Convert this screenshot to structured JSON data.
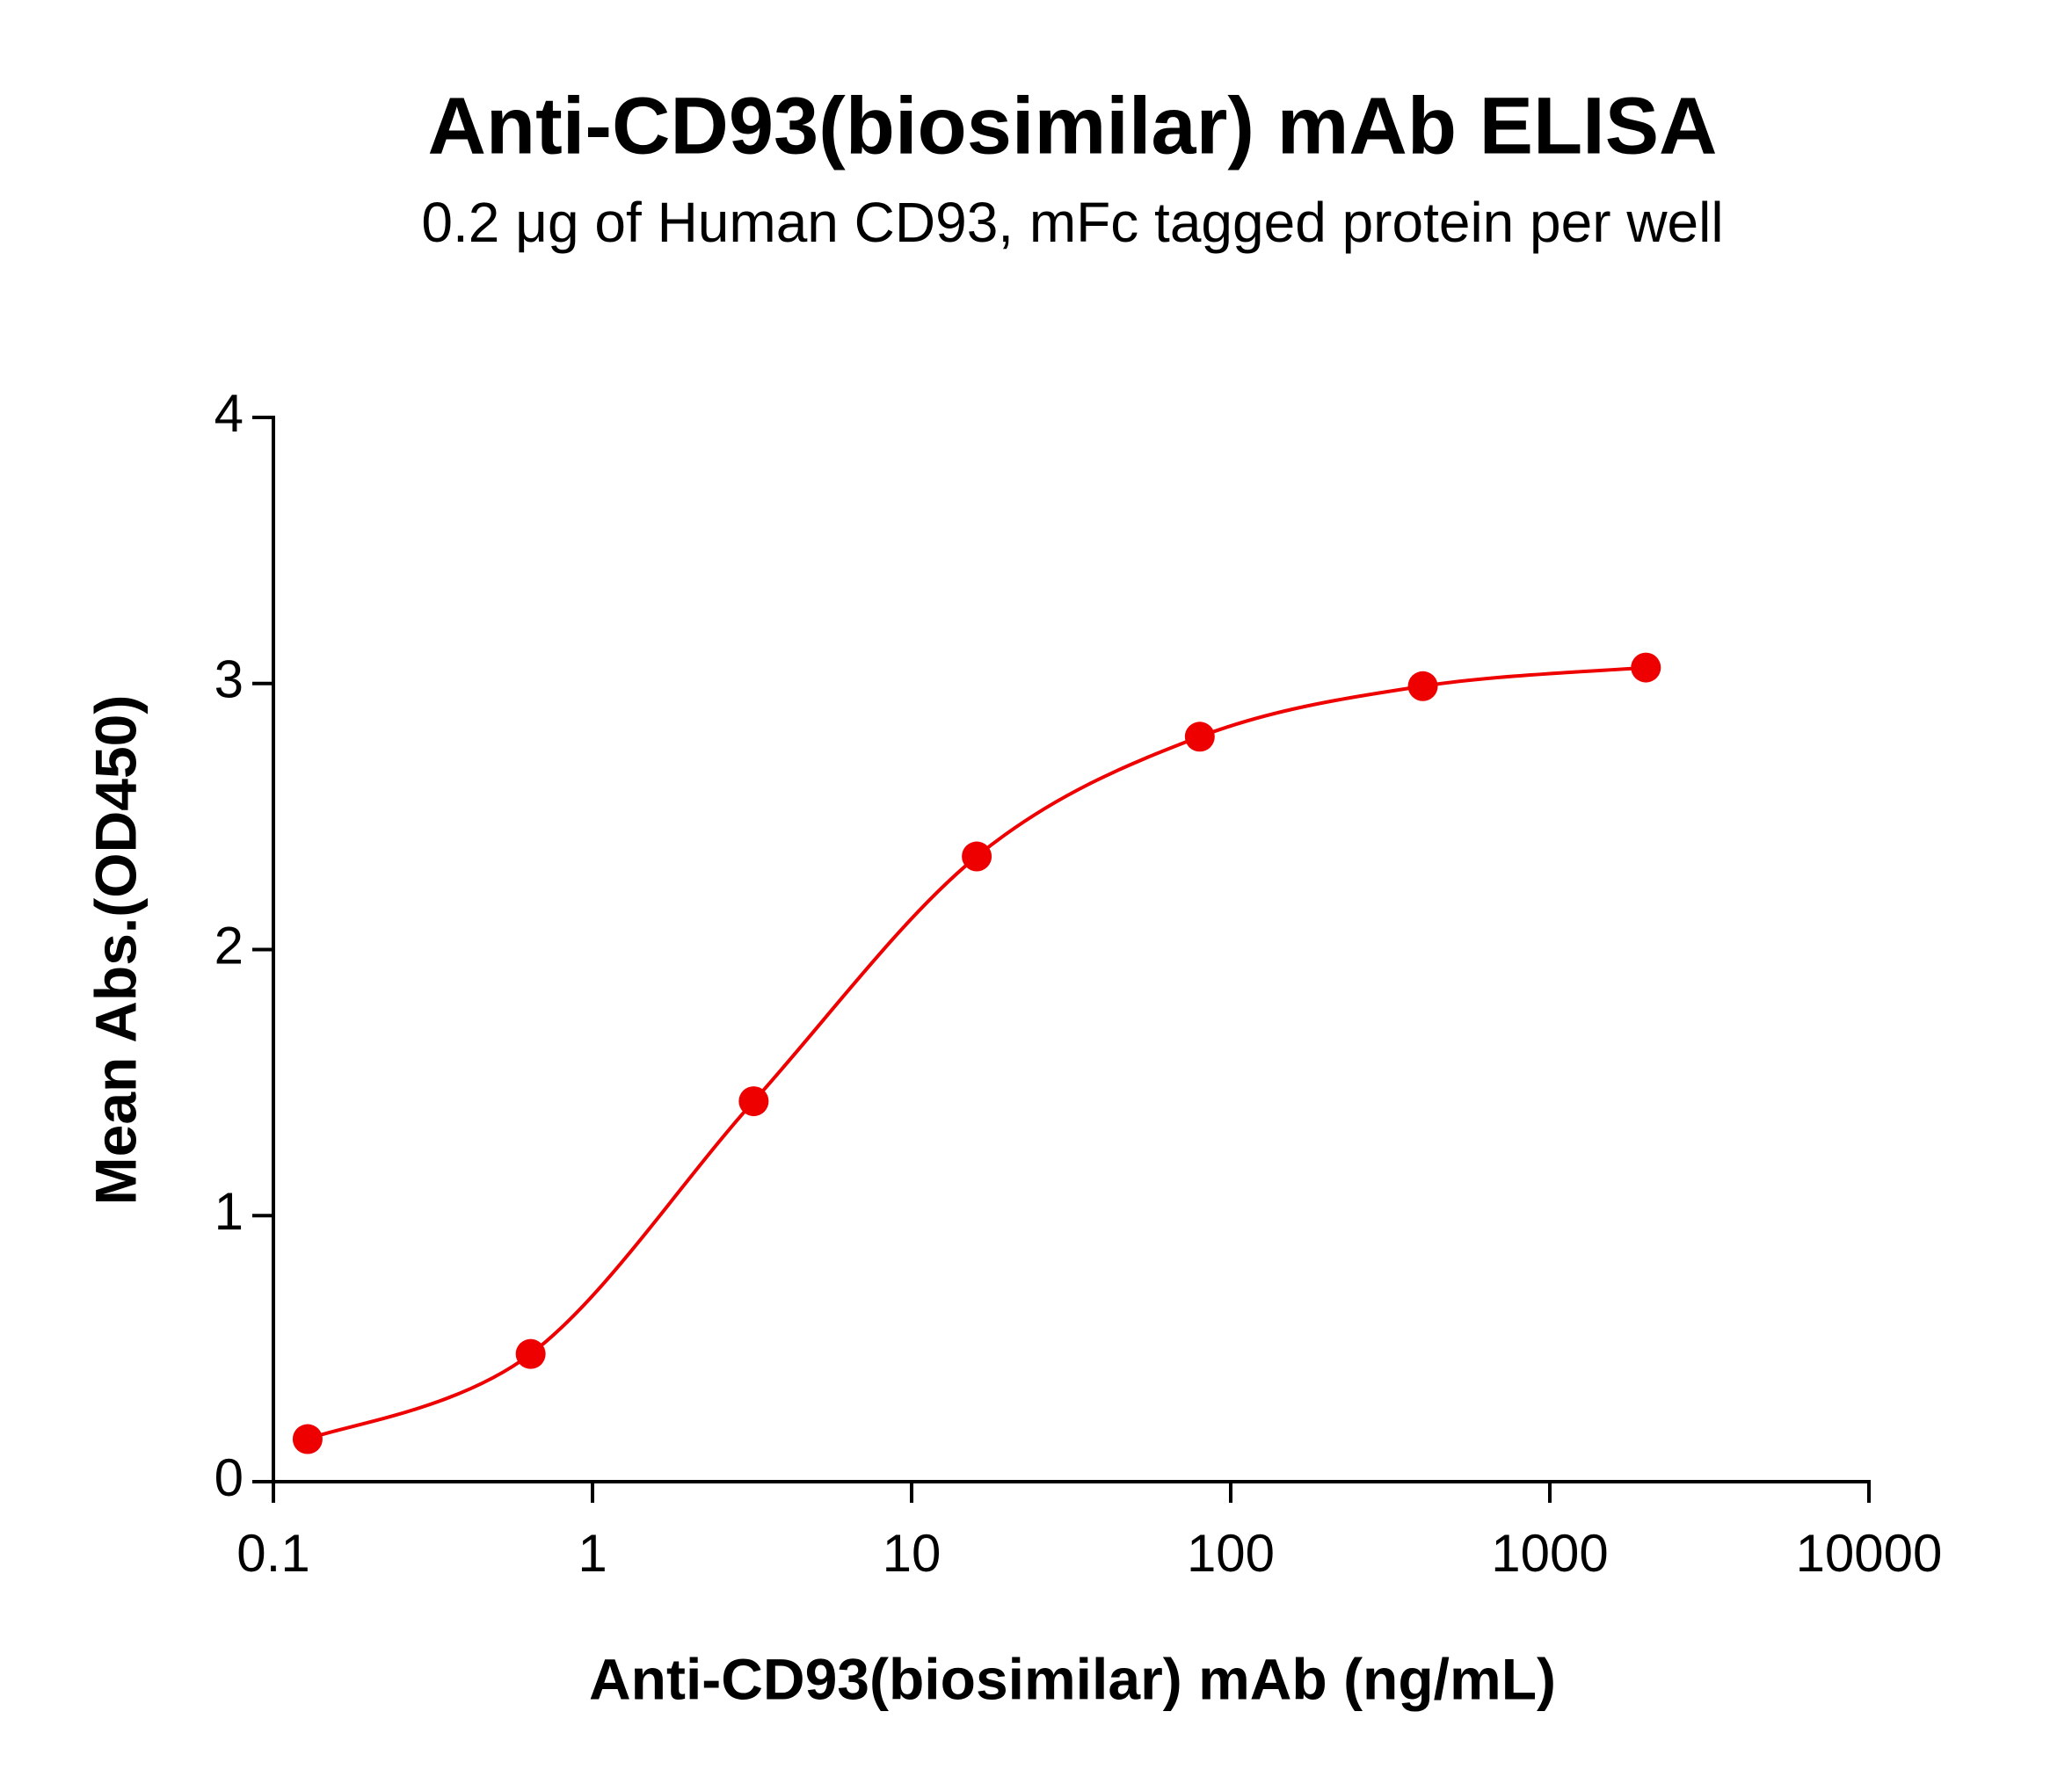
{
  "chart_data": {
    "type": "scatter",
    "title": "Anti-CD93(biosimilar) mAb ELISA",
    "subtitle": "0.2 μg of Human CD93, mFc tagged protein per well",
    "x_label": "Anti-CD93(biosimilar) mAb (ng/mL)",
    "y_label": "Mean Abs.(OD450)",
    "x_scale": "log",
    "fit_curve": true,
    "series": [
      {
        "color": "#ee0000",
        "x": [
          0.128,
          0.64,
          3.2,
          16,
          80,
          400,
          2000
        ],
        "values": [
          0.16,
          0.48,
          1.43,
          2.35,
          2.8,
          2.99,
          3.06
        ]
      }
    ],
    "xlim": [
      0.1,
      10000
    ],
    "xticks": [
      0.1,
      1,
      10,
      100,
      1000,
      10000
    ],
    "ylim": [
      0,
      4
    ],
    "yticks": [
      0,
      1,
      2,
      3,
      4
    ]
  }
}
